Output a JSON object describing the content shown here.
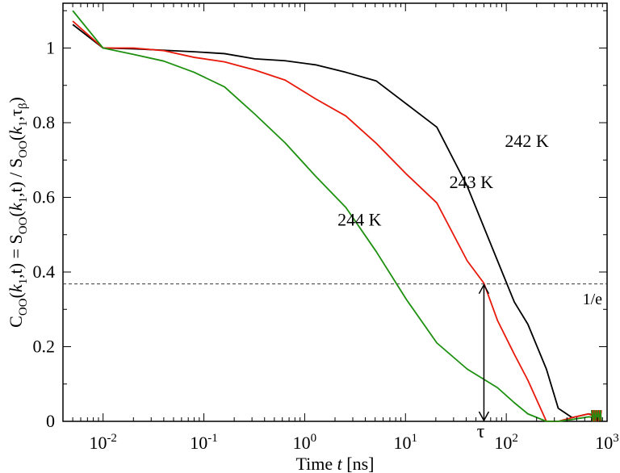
{
  "chart_data": {
    "type": "line",
    "x_scale": "log",
    "xlim": [
      0.004,
      1000
    ],
    "ylim": [
      0,
      1.12
    ],
    "xlabel": {
      "main": "Time ",
      "var": "t",
      "unit": " [ns]"
    },
    "ylabel": "C_OO(k_1,t) = S_OO(k_1,t) / S_OO(k_1,τ_β)",
    "x_ticks": [
      {
        "value": 0.01,
        "base": "10",
        "exp": "-2"
      },
      {
        "value": 0.1,
        "base": "10",
        "exp": "-1"
      },
      {
        "value": 1,
        "base": "10",
        "exp": "0"
      },
      {
        "value": 10,
        "base": "10",
        "exp": "1"
      },
      {
        "value": 100,
        "base": "10",
        "exp": "2"
      },
      {
        "value": 1000,
        "base": "10",
        "exp": "3"
      }
    ],
    "y_ticks": [
      {
        "value": 0,
        "label": "0"
      },
      {
        "value": 0.2,
        "label": "0.2"
      },
      {
        "value": 0.4,
        "label": "0.4"
      },
      {
        "value": 0.6,
        "label": "0.6"
      },
      {
        "value": 0.8,
        "label": "0.8"
      },
      {
        "value": 1,
        "label": "1"
      }
    ],
    "series": [
      {
        "name": "242 K",
        "color": "#000000",
        "x": [
          0.005,
          0.01,
          0.02,
          0.04,
          0.08,
          0.16,
          0.32,
          0.64,
          1.28,
          2.56,
          5.12,
          10.24,
          20.48,
          40.96,
          81.92,
          120,
          163.84,
          250,
          327.68,
          450,
          655.36,
          800
        ],
        "y": [
          1.063,
          1.0,
          0.998,
          0.994,
          0.99,
          0.985,
          0.971,
          0.966,
          0.955,
          0.935,
          0.912,
          0.85,
          0.788,
          0.63,
          0.43,
          0.32,
          0.26,
          0.14,
          0.035,
          0.01,
          0.02,
          0.015
        ]
      },
      {
        "name": "243 K",
        "color": "#e8190a",
        "x": [
          0.005,
          0.01,
          0.02,
          0.04,
          0.08,
          0.16,
          0.32,
          0.64,
          1.28,
          2.56,
          5.12,
          10.24,
          20.48,
          40.96,
          60,
          81.92,
          120,
          163.84,
          250,
          327.68,
          450,
          655.36,
          800
        ],
        "y": [
          1.072,
          1.0,
          1.0,
          0.993,
          0.975,
          0.963,
          0.941,
          0.914,
          0.864,
          0.818,
          0.745,
          0.662,
          0.585,
          0.43,
          0.37,
          0.27,
          0.18,
          0.11,
          0.0,
          0.0,
          0.01,
          0.02,
          0.01
        ]
      },
      {
        "name": "244 K",
        "color": "#1e9010",
        "x": [
          0.005,
          0.01,
          0.02,
          0.04,
          0.08,
          0.16,
          0.32,
          0.64,
          1.28,
          2.56,
          5.12,
          10.24,
          20.48,
          40.96,
          81.92,
          120,
          163.84,
          250,
          327.68,
          450,
          655.36,
          800
        ],
        "y": [
          1.1,
          1.0,
          0.983,
          0.965,
          0.935,
          0.896,
          0.823,
          0.746,
          0.657,
          0.573,
          0.455,
          0.326,
          0.21,
          0.14,
          0.09,
          0.05,
          0.02,
          0.0,
          0.0,
          0.005,
          0.012,
          0.01
        ]
      }
    ],
    "series_label_positions": [
      {
        "text": "242 K",
        "x": 160,
        "y": 0.75
      },
      {
        "text": "243 K",
        "x": 45,
        "y": 0.64
      },
      {
        "text": "244 K",
        "x": 3.5,
        "y": 0.54
      }
    ],
    "reference_line": {
      "y": 0.368,
      "label": "1/e",
      "style": "dashed"
    },
    "annotation": {
      "label": "τ",
      "x": 60,
      "y_from": 0.368,
      "y_to": 0
    }
  }
}
